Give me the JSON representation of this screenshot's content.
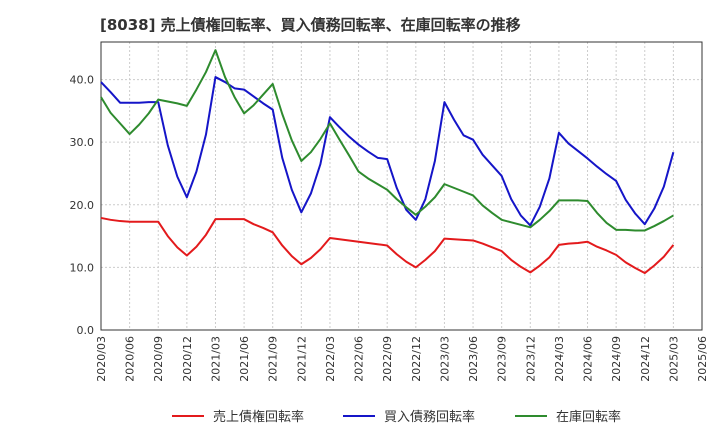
{
  "chart_data": {
    "type": "line",
    "title": "[8038]  売上債権回転率、買入債務回転率、在庫回転率の推移",
    "xlabel": "",
    "ylabel": "",
    "ylim": [
      0,
      46
    ],
    "yticks": [
      0,
      10,
      20,
      30,
      40
    ],
    "ytick_labels": [
      "0.0",
      "10.0",
      "20.0",
      "30.0",
      "40.0"
    ],
    "x": [
      "2020/03",
      "2020/04",
      "2020/05",
      "2020/06",
      "2020/07",
      "2020/08",
      "2020/09",
      "2020/10",
      "2020/11",
      "2020/12",
      "2021/01",
      "2021/02",
      "2021/03",
      "2021/04",
      "2021/05",
      "2021/06",
      "2021/07",
      "2021/08",
      "2021/09",
      "2021/10",
      "2021/11",
      "2021/12",
      "2022/01",
      "2022/02",
      "2022/03",
      "2022/04",
      "2022/05",
      "2022/06",
      "2022/07",
      "2022/08",
      "2022/09",
      "2022/10",
      "2022/11",
      "2022/12",
      "2023/01",
      "2023/02",
      "2023/03",
      "2023/04",
      "2023/05",
      "2023/06",
      "2023/07",
      "2023/08",
      "2023/09",
      "2023/10",
      "2023/11",
      "2023/12",
      "2024/01",
      "2024/02",
      "2024/03",
      "2024/04",
      "2024/05",
      "2024/06",
      "2024/07",
      "2024/08",
      "2024/09",
      "2024/10",
      "2024/11",
      "2024/12",
      "2025/01",
      "2025/02",
      "2025/03",
      "2025/04",
      "2025/05",
      "2025/06"
    ],
    "x_tick_labels": [
      "2020/03",
      "2020/06",
      "2020/09",
      "2020/12",
      "2021/03",
      "2021/06",
      "2021/09",
      "2021/12",
      "2022/03",
      "2022/06",
      "2022/09",
      "2022/12",
      "2023/03",
      "2023/06",
      "2023/09",
      "2023/12",
      "2024/03",
      "2024/06",
      "2024/09",
      "2024/12",
      "2025/03",
      "2025/06"
    ],
    "legend_position": "bottom",
    "series": [
      {
        "name": "売上債権回転率",
        "color": "#e31a1c",
        "values": [
          17.9,
          17.6,
          17.4,
          17.3,
          17.3,
          17.3,
          17.3,
          15.0,
          13.2,
          11.9,
          13.3,
          15.2,
          17.7,
          17.7,
          17.7,
          17.7,
          16.9,
          16.3,
          15.6,
          13.5,
          11.8,
          10.5,
          11.5,
          12.9,
          14.7,
          14.5,
          14.3,
          14.1,
          13.9,
          13.7,
          13.5,
          12.1,
          10.9,
          10.0,
          11.2,
          12.6,
          14.6,
          14.5,
          14.4,
          14.3,
          13.8,
          13.2,
          12.6,
          11.2,
          10.1,
          9.2,
          10.3,
          11.6,
          13.6,
          13.8,
          13.9,
          14.1,
          13.3,
          12.7,
          12.0,
          10.8,
          9.9,
          9.1,
          10.3,
          11.7,
          13.6,
          null,
          null,
          null
        ]
      },
      {
        "name": "買入債務回転率",
        "color": "#1515c8",
        "values": [
          39.6,
          38.0,
          36.3,
          36.3,
          36.3,
          36.4,
          36.4,
          29.5,
          24.5,
          21.2,
          25.3,
          31.2,
          40.4,
          39.6,
          38.6,
          38.4,
          37.3,
          36.2,
          35.2,
          27.5,
          22.4,
          18.8,
          21.8,
          26.5,
          34.0,
          32.4,
          30.9,
          29.6,
          28.5,
          27.5,
          27.3,
          22.7,
          19.2,
          17.6,
          20.9,
          27.0,
          36.4,
          33.6,
          31.1,
          30.4,
          28.0,
          26.3,
          24.6,
          20.9,
          18.3,
          16.7,
          19.7,
          24.2,
          31.5,
          29.8,
          28.6,
          27.4,
          26.1,
          24.9,
          23.8,
          20.8,
          18.6,
          16.9,
          19.4,
          22.9,
          28.4,
          null,
          null,
          null
        ]
      },
      {
        "name": "在庫回転率",
        "color": "#2e8b2e",
        "values": [
          37.2,
          34.7,
          33.0,
          31.3,
          32.8,
          34.6,
          36.8,
          36.5,
          36.2,
          35.8,
          38.4,
          41.2,
          44.7,
          40.4,
          37.2,
          34.6,
          35.9,
          37.6,
          39.3,
          34.5,
          30.3,
          27.0,
          28.4,
          30.5,
          33.0,
          30.4,
          27.9,
          25.3,
          24.2,
          23.3,
          22.4,
          20.9,
          19.6,
          18.4,
          19.7,
          21.2,
          23.3,
          22.7,
          22.1,
          21.5,
          19.9,
          18.7,
          17.6,
          17.2,
          16.8,
          16.4,
          17.6,
          19.0,
          20.7,
          20.7,
          20.7,
          20.6,
          18.7,
          17.1,
          16.0,
          16.0,
          15.9,
          15.9,
          16.6,
          17.4,
          18.3,
          null,
          null,
          null
        ]
      }
    ]
  }
}
